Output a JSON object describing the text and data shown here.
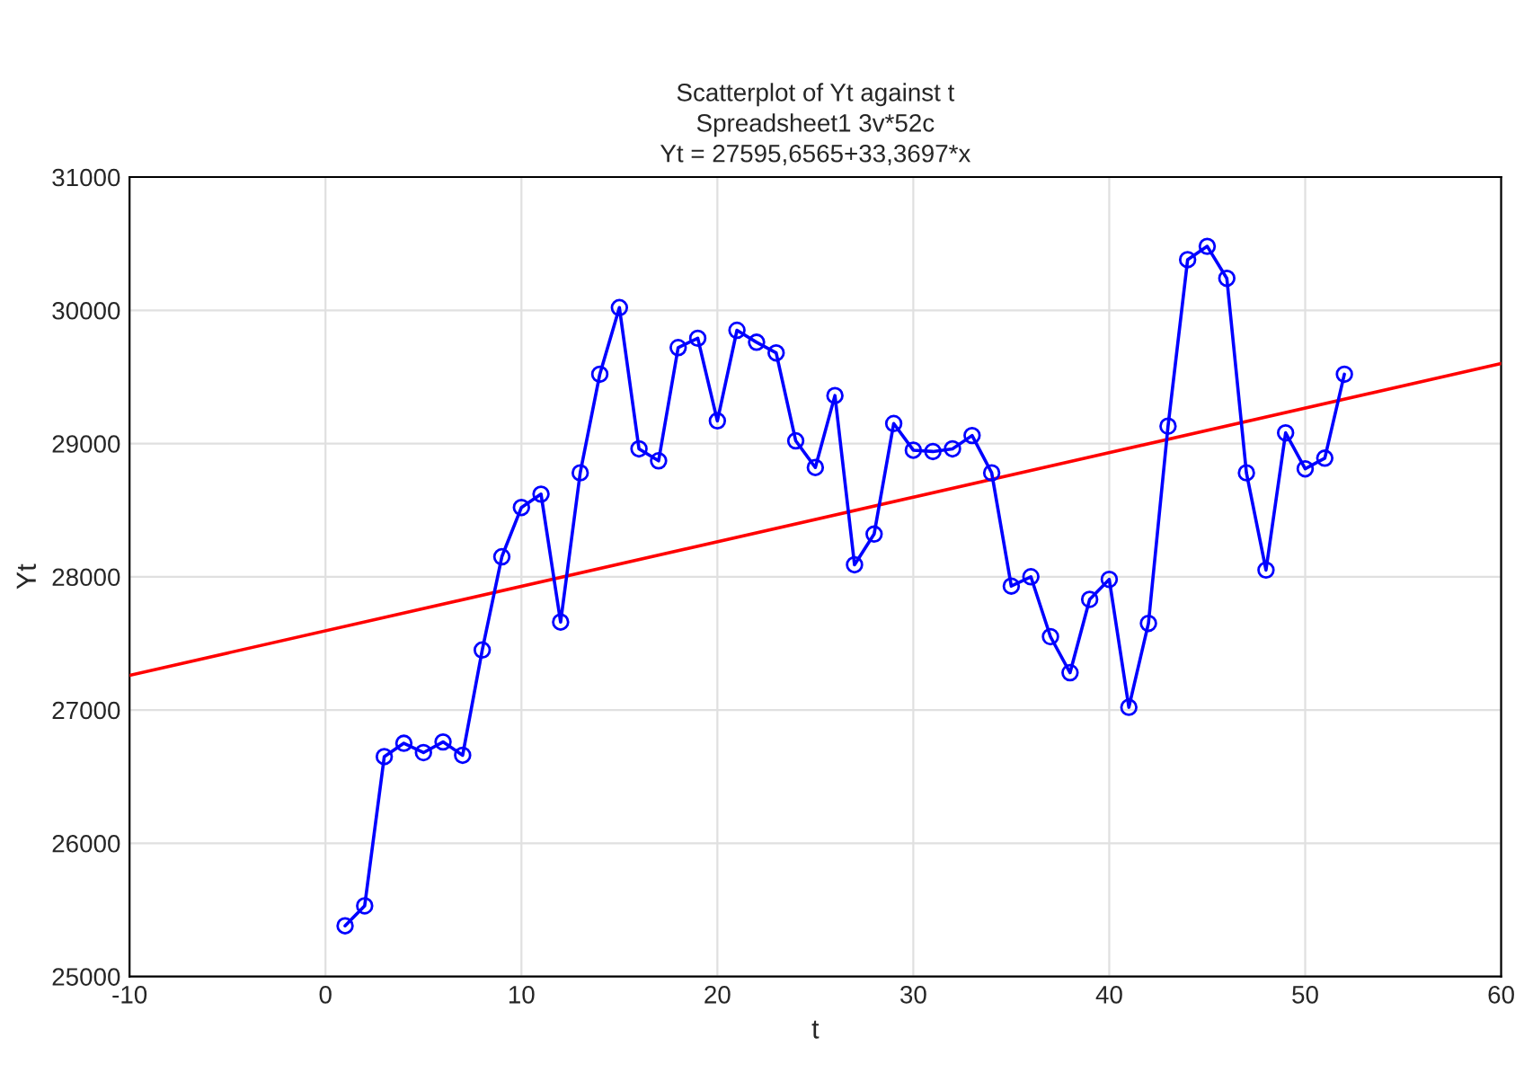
{
  "chart_data": {
    "type": "line",
    "title": "Scatterplot of Yt against t\nSpreadsheet1 3v*52c\nYt = 27595,6565+33,3697*x",
    "xlabel": "t",
    "ylabel": "Yt",
    "x": [
      1,
      2,
      3,
      4,
      5,
      6,
      7,
      8,
      9,
      10,
      11,
      12,
      13,
      14,
      15,
      16,
      17,
      18,
      19,
      20,
      21,
      22,
      23,
      24,
      25,
      26,
      27,
      28,
      29,
      30,
      31,
      32,
      33,
      34,
      35,
      36,
      37,
      38,
      39,
      40,
      41,
      42,
      43,
      44,
      45,
      46,
      47,
      48,
      49,
      50,
      51,
      52
    ],
    "series": [
      {
        "color": "#0000ff",
        "marker": "circle",
        "values": [
          25380,
          25530,
          26650,
          26750,
          26680,
          26760,
          26660,
          27450,
          28150,
          28520,
          28620,
          27660,
          28780,
          29520,
          30020,
          28960,
          28870,
          29720,
          29790,
          29170,
          29850,
          29760,
          29680,
          29020,
          28820,
          29360,
          28090,
          28320,
          29150,
          28950,
          28940,
          28960,
          29060,
          28780,
          27930,
          28000,
          27550,
          27280,
          27830,
          27980,
          27020,
          27650,
          29130,
          30380,
          30480,
          30240,
          28780,
          28050,
          29080,
          28810,
          28890,
          29520
        ]
      },
      {
        "type": "line",
        "color": "#ff0000",
        "marker": "none",
        "x": [
          -10,
          60
        ],
        "values": [
          27260,
          29600
        ]
      }
    ],
    "xlim": [
      -10,
      60
    ],
    "xticks": [
      -10,
      0,
      10,
      20,
      30,
      40,
      50,
      60
    ],
    "ylim": [
      25000,
      31000
    ],
    "yticks": [
      25000,
      26000,
      27000,
      28000,
      29000,
      30000,
      31000
    ],
    "grid": true
  }
}
